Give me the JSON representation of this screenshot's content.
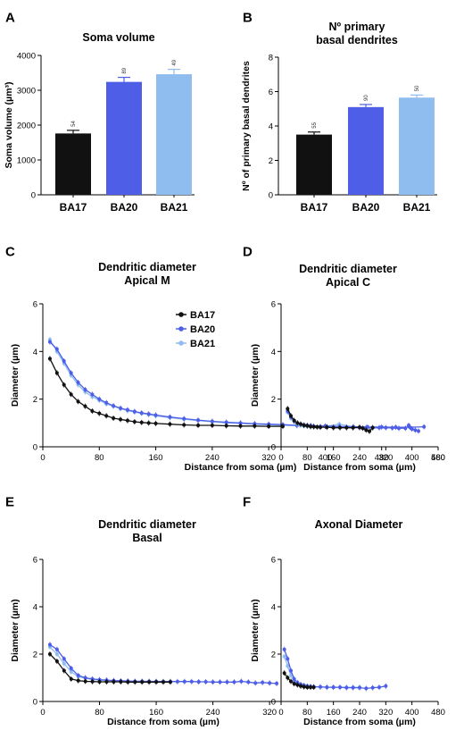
{
  "colors": {
    "BA17": "#111111",
    "BA20": "#4e5ee6",
    "BA21": "#8fbdf0"
  },
  "chart_data": [
    {
      "letter": "A",
      "type": "bar",
      "title": [
        "Soma volume"
      ],
      "ylabel": "Soma volume (µm³)",
      "categories": [
        "BA17",
        "BA20",
        "BA21"
      ],
      "values": [
        1760,
        3240,
        3460
      ],
      "errors": [
        90,
        130,
        140
      ],
      "n_labels": [
        "54",
        "89",
        "49"
      ],
      "ylim": [
        0,
        4000
      ],
      "yticks": [
        0,
        1000,
        2000,
        3000,
        4000
      ]
    },
    {
      "letter": "B",
      "type": "bar",
      "title": [
        "Nº primary",
        "basal dendrites"
      ],
      "ylabel": "Nº of primary basal dendrites",
      "categories": [
        "BA17",
        "BA20",
        "BA21"
      ],
      "values": [
        3.5,
        5.1,
        5.65
      ],
      "errors": [
        0.15,
        0.15,
        0.15
      ],
      "n_labels": [
        "55",
        "90",
        "50"
      ],
      "ylim": [
        0,
        8
      ],
      "yticks": [
        0,
        2,
        4,
        6,
        8
      ]
    },
    {
      "letter": "C",
      "type": "line",
      "title": [
        "Dendritic diameter",
        "Apical M"
      ],
      "xlabel": "Distance from soma (µm)",
      "ylabel": "Diameter (µm)",
      "xlim": [
        0,
        560
      ],
      "ylim": [
        0,
        6
      ],
      "xticks": [
        0,
        80,
        160,
        240,
        320,
        400,
        480,
        560
      ],
      "yticks": [
        0,
        2,
        4,
        6
      ],
      "legend": [
        "BA17",
        "BA20",
        "BA21"
      ],
      "series": [
        {
          "name": "BA17",
          "x": [
            10,
            20,
            30,
            40,
            50,
            60,
            70,
            80,
            90,
            100,
            110,
            120,
            130,
            140,
            150,
            160,
            180,
            200,
            220,
            240,
            260,
            280,
            300,
            320,
            340
          ],
          "y": [
            3.7,
            3.1,
            2.6,
            2.2,
            1.9,
            1.7,
            1.5,
            1.4,
            1.3,
            1.2,
            1.15,
            1.1,
            1.05,
            1.02,
            1.0,
            0.98,
            0.95,
            0.92,
            0.9,
            0.9,
            0.88,
            0.87,
            0.87,
            0.86,
            0.86
          ]
        },
        {
          "name": "BA20",
          "x": [
            10,
            20,
            30,
            40,
            50,
            60,
            70,
            80,
            90,
            100,
            110,
            120,
            130,
            140,
            150,
            160,
            180,
            200,
            220,
            240,
            260,
            280,
            300,
            320,
            340,
            360,
            380,
            400,
            420,
            440,
            460,
            480,
            500,
            520,
            540
          ],
          "y": [
            4.4,
            4.1,
            3.6,
            3.1,
            2.7,
            2.4,
            2.2,
            2.0,
            1.85,
            1.72,
            1.62,
            1.55,
            1.48,
            1.42,
            1.38,
            1.33,
            1.25,
            1.18,
            1.12,
            1.07,
            1.03,
            1.0,
            0.97,
            0.95,
            0.93,
            0.9,
            0.88,
            0.87,
            0.85,
            0.84,
            0.83,
            0.83,
            0.82,
            0.82,
            0.84
          ]
        },
        {
          "name": "BA21",
          "x": [
            10,
            20,
            30,
            40,
            50,
            60,
            70,
            80,
            90,
            100,
            110,
            120,
            130,
            140,
            150,
            160,
            180,
            200,
            220,
            240,
            260,
            280,
            300,
            320,
            340,
            360,
            380,
            400,
            420,
            440,
            460
          ],
          "y": [
            4.5,
            4.0,
            3.5,
            3.0,
            2.6,
            2.3,
            2.1,
            1.95,
            1.8,
            1.7,
            1.6,
            1.52,
            1.46,
            1.4,
            1.35,
            1.3,
            1.22,
            1.16,
            1.1,
            1.05,
            1.0,
            0.98,
            0.95,
            0.92,
            0.9,
            0.88,
            0.86,
            0.85,
            0.95,
            0.84,
            0.83
          ]
        }
      ]
    },
    {
      "letter": "D",
      "type": "line",
      "title": [
        "Dendritic diameter",
        "Apical C"
      ],
      "xlabel": "Distance from soma (µm)",
      "ylabel": "Diameter (µm)",
      "xlim": [
        0,
        480
      ],
      "ylim": [
        0,
        6
      ],
      "xticks": [
        0,
        80,
        160,
        240,
        320,
        400,
        480
      ],
      "yticks": [
        0,
        2,
        4,
        6
      ],
      "series": [
        {
          "name": "BA17",
          "x": [
            20,
            30,
            40,
            50,
            60,
            70,
            80,
            90,
            100,
            110,
            120,
            140,
            160,
            180,
            200,
            220,
            240,
            250,
            260,
            270,
            280
          ],
          "y": [
            1.6,
            1.3,
            1.1,
            1.0,
            0.95,
            0.9,
            0.88,
            0.85,
            0.84,
            0.83,
            0.82,
            0.82,
            0.8,
            0.8,
            0.8,
            0.8,
            0.82,
            0.78,
            0.7,
            0.65,
            0.8
          ]
        },
        {
          "name": "BA20",
          "x": [
            20,
            30,
            40,
            50,
            60,
            70,
            80,
            90,
            100,
            120,
            140,
            160,
            180,
            200,
            220,
            240,
            260,
            280,
            300,
            320,
            340,
            360,
            380,
            390,
            400,
            410,
            420
          ],
          "y": [
            1.5,
            1.25,
            1.1,
            1.0,
            0.95,
            0.92,
            0.9,
            0.88,
            0.86,
            0.85,
            0.84,
            0.83,
            0.82,
            0.82,
            0.81,
            0.8,
            0.8,
            0.8,
            0.8,
            0.8,
            0.79,
            0.78,
            0.78,
            0.9,
            0.75,
            0.7,
            0.66
          ]
        },
        {
          "name": "BA21",
          "x": [
            20,
            30,
            40,
            50,
            60,
            70,
            80,
            100,
            120,
            140,
            160,
            180,
            200,
            220,
            240,
            260,
            280,
            300
          ],
          "y": [
            1.45,
            1.2,
            1.05,
            0.95,
            0.9,
            0.88,
            0.86,
            0.85,
            0.84,
            0.83,
            0.82,
            0.82,
            0.81,
            0.8,
            0.8,
            0.8,
            0.8,
            0.8
          ]
        }
      ]
    },
    {
      "letter": "E",
      "type": "line",
      "title": [
        "Dendritic diameter",
        "Basal"
      ],
      "xlabel": "Distance from soma (µm)",
      "ylabel": "Diameter (µm)",
      "xlim": [
        0,
        340
      ],
      "ylim": [
        0,
        6
      ],
      "xticks": [
        0,
        80,
        160,
        240,
        320
      ],
      "yticks": [
        0,
        2,
        4,
        6
      ],
      "series": [
        {
          "name": "BA17",
          "x": [
            10,
            20,
            30,
            40,
            50,
            60,
            70,
            80,
            90,
            100,
            110,
            120,
            130,
            140,
            150,
            160,
            170,
            180
          ],
          "y": [
            2.0,
            1.7,
            1.3,
            0.95,
            0.88,
            0.85,
            0.84,
            0.83,
            0.83,
            0.83,
            0.83,
            0.82,
            0.82,
            0.82,
            0.82,
            0.82,
            0.82,
            0.82
          ]
        },
        {
          "name": "BA20",
          "x": [
            10,
            20,
            30,
            40,
            50,
            60,
            70,
            80,
            90,
            100,
            110,
            120,
            130,
            140,
            150,
            160,
            170,
            180,
            190,
            200,
            210,
            220,
            230,
            240,
            250,
            260,
            270,
            280,
            290,
            300,
            310,
            320,
            330
          ],
          "y": [
            2.4,
            2.2,
            1.8,
            1.4,
            1.1,
            1.0,
            0.95,
            0.92,
            0.9,
            0.88,
            0.87,
            0.86,
            0.85,
            0.85,
            0.85,
            0.84,
            0.84,
            0.84,
            0.84,
            0.84,
            0.84,
            0.83,
            0.83,
            0.82,
            0.82,
            0.82,
            0.82,
            0.85,
            0.82,
            0.78,
            0.8,
            0.78,
            0.76
          ]
        },
        {
          "name": "BA21",
          "x": [
            10,
            20,
            30,
            40,
            50,
            60,
            70,
            80,
            90,
            100,
            120,
            140,
            160,
            180,
            200,
            220
          ],
          "y": [
            2.3,
            2.0,
            1.6,
            1.25,
            1.05,
            0.98,
            0.93,
            0.9,
            0.88,
            0.87,
            0.86,
            0.85,
            0.85,
            0.84,
            0.84,
            0.83
          ]
        }
      ]
    },
    {
      "letter": "F",
      "type": "line",
      "title": [
        "Axonal Diameter"
      ],
      "xlabel": "Distance from soma (µm)",
      "ylabel": "Diameter (µm)",
      "xlim": [
        0,
        480
      ],
      "ylim": [
        0,
        6
      ],
      "xticks": [
        0,
        80,
        160,
        240,
        320,
        400,
        480
      ],
      "yticks": [
        0,
        2,
        4,
        6
      ],
      "series": [
        {
          "name": "BA17",
          "x": [
            10,
            20,
            30,
            40,
            50,
            60,
            70,
            80,
            90,
            100
          ],
          "y": [
            1.2,
            1.0,
            0.85,
            0.75,
            0.7,
            0.65,
            0.62,
            0.6,
            0.6,
            0.6
          ]
        },
        {
          "name": "BA20",
          "x": [
            10,
            20,
            30,
            40,
            50,
            60,
            70,
            80,
            90,
            100,
            120,
            140,
            160,
            180,
            200,
            220,
            240,
            260,
            280,
            300,
            320
          ],
          "y": [
            2.2,
            1.8,
            1.3,
            0.95,
            0.8,
            0.72,
            0.68,
            0.65,
            0.63,
            0.62,
            0.62,
            0.6,
            0.6,
            0.6,
            0.58,
            0.58,
            0.58,
            0.55,
            0.58,
            0.6,
            0.65
          ]
        },
        {
          "name": "BA21",
          "x": [
            10,
            20,
            30,
            40,
            50,
            60,
            70,
            80,
            100,
            120,
            140,
            160,
            180,
            200,
            220,
            240
          ],
          "y": [
            1.9,
            1.5,
            1.1,
            0.85,
            0.75,
            0.7,
            0.66,
            0.63,
            0.62,
            0.61,
            0.6,
            0.6,
            0.6,
            0.6,
            0.6,
            0.6
          ]
        }
      ]
    }
  ]
}
